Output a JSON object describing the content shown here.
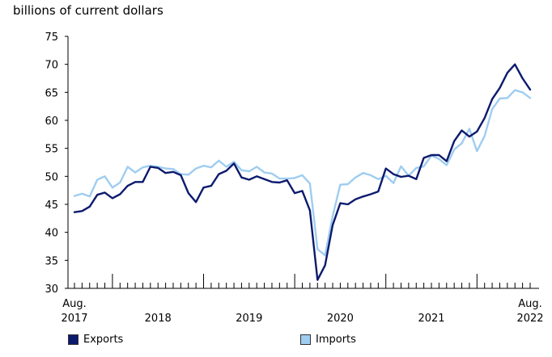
{
  "chart_data": {
    "type": "line",
    "y_unit_label": "billions of current dollars",
    "ylim": [
      30,
      75
    ],
    "yticks": [
      30,
      35,
      40,
      45,
      50,
      55,
      60,
      65,
      70,
      75
    ],
    "x_axis": {
      "start_label": [
        "Aug.",
        "2017"
      ],
      "end_label": [
        "Aug.",
        "2022"
      ],
      "year_labels": [
        "2018",
        "2019",
        "2020",
        "2021"
      ]
    },
    "x": [
      "2017-08",
      "2017-09",
      "2017-10",
      "2017-11",
      "2017-12",
      "2018-01",
      "2018-02",
      "2018-03",
      "2018-04",
      "2018-05",
      "2018-06",
      "2018-07",
      "2018-08",
      "2018-09",
      "2018-10",
      "2018-11",
      "2018-12",
      "2019-01",
      "2019-02",
      "2019-03",
      "2019-04",
      "2019-05",
      "2019-06",
      "2019-07",
      "2019-08",
      "2019-09",
      "2019-10",
      "2019-11",
      "2019-12",
      "2020-01",
      "2020-02",
      "2020-03",
      "2020-04",
      "2020-05",
      "2020-06",
      "2020-07",
      "2020-08",
      "2020-09",
      "2020-10",
      "2020-11",
      "2020-12",
      "2021-01",
      "2021-02",
      "2021-03",
      "2021-04",
      "2021-05",
      "2021-06",
      "2021-07",
      "2021-08",
      "2021-09",
      "2021-10",
      "2021-11",
      "2021-12",
      "2022-01",
      "2022-02",
      "2022-03",
      "2022-04",
      "2022-05",
      "2022-06",
      "2022-07",
      "2022-08"
    ],
    "series": [
      {
        "name": "Exports",
        "color": "#0c1a6e",
        "values": [
          43.6,
          43.8,
          44.6,
          46.7,
          47.1,
          46.1,
          46.8,
          48.3,
          49.0,
          49.0,
          51.7,
          51.5,
          50.6,
          50.8,
          50.2,
          47.0,
          45.4,
          48.0,
          48.3,
          50.4,
          51.0,
          52.3,
          49.8,
          49.4,
          50.0,
          49.5,
          49.0,
          48.9,
          49.3,
          47.0,
          47.4,
          43.9,
          31.5,
          34.1,
          41.3,
          45.2,
          45.0,
          45.9,
          46.4,
          46.8,
          47.3,
          51.4,
          50.4,
          49.9,
          50.1,
          49.5,
          53.3,
          53.8,
          53.8,
          52.7,
          56.3,
          58.2,
          57.1,
          58.0,
          60.4,
          63.8,
          65.8,
          68.5,
          70.0,
          67.5,
          65.5
        ]
      },
      {
        "name": "Imports",
        "color": "#9fcdf0",
        "values": [
          46.5,
          46.9,
          46.4,
          49.4,
          50.0,
          48.0,
          48.9,
          51.7,
          50.7,
          51.6,
          51.9,
          51.7,
          51.4,
          51.3,
          50.4,
          50.3,
          51.4,
          51.9,
          51.6,
          52.8,
          51.7,
          52.6,
          51.1,
          50.9,
          51.7,
          50.7,
          50.5,
          49.6,
          49.6,
          49.7,
          50.2,
          48.7,
          37.0,
          35.9,
          42.9,
          48.5,
          48.6,
          49.8,
          50.6,
          50.2,
          49.5,
          50.1,
          48.8,
          51.8,
          50.1,
          51.5,
          51.8,
          53.7,
          53.1,
          52.0,
          54.8,
          55.9,
          58.5,
          54.5,
          57.2,
          62.0,
          63.9,
          64.0,
          65.4,
          65.0,
          64.0
        ]
      }
    ],
    "legend_placement": "bottom",
    "grid": false
  }
}
